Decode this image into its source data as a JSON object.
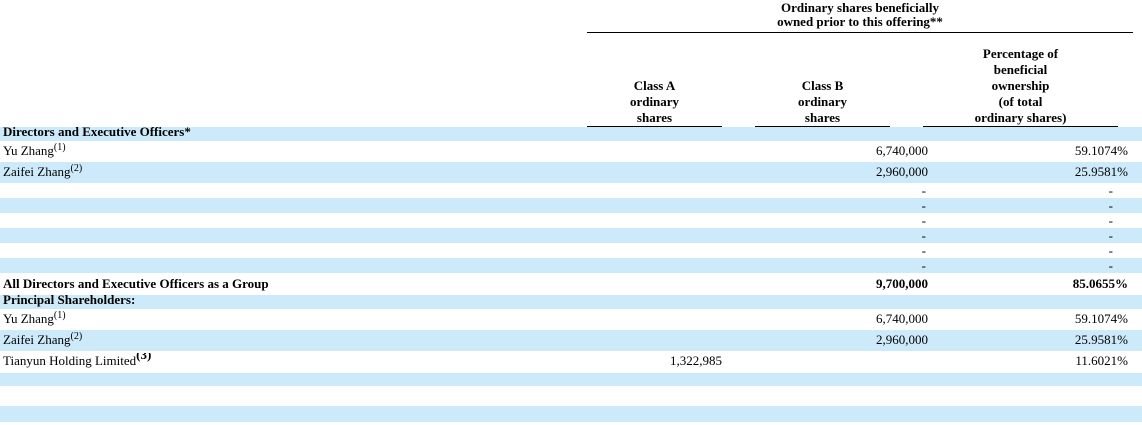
{
  "colors": {
    "row_shade": "#cdeafa",
    "text": "#000000",
    "rule": "#000000"
  },
  "table": {
    "span_header": {
      "line1": "Ordinary shares beneficially",
      "line2": "owned prior to this offering**"
    },
    "column_headers": {
      "class_a": [
        "Class A",
        "ordinary",
        "shares"
      ],
      "class_b": [
        "Class B",
        "ordinary",
        "shares"
      ],
      "percentage": [
        "Percentage of",
        "beneficial",
        "ownership",
        "(of total",
        "ordinary shares)"
      ]
    },
    "rows": [
      {
        "variant": "section",
        "shaded": true,
        "name": "Directors and Executive Officers*",
        "sup": "",
        "class_a": "",
        "class_b": "",
        "pct": ""
      },
      {
        "variant": "holder",
        "shaded": false,
        "name": "Yu Zhang",
        "sup": "(1)",
        "class_a": "",
        "class_b": "6,740,000",
        "pct": "59.1074%"
      },
      {
        "variant": "holder",
        "shaded": true,
        "name": "Zaifei Zhang",
        "sup": "(2)",
        "class_a": "",
        "class_b": "2,960,000",
        "pct": "25.9581%"
      },
      {
        "variant": "dash",
        "shaded": false,
        "name": "",
        "sup": "",
        "class_a": "",
        "class_b": "-",
        "pct": "-"
      },
      {
        "variant": "dash",
        "shaded": true,
        "name": "",
        "sup": "",
        "class_a": "",
        "class_b": "-",
        "pct": "-"
      },
      {
        "variant": "dash",
        "shaded": false,
        "name": "",
        "sup": "",
        "class_a": "",
        "class_b": "-",
        "pct": "-"
      },
      {
        "variant": "dash",
        "shaded": true,
        "name": "",
        "sup": "",
        "class_a": "",
        "class_b": "-",
        "pct": "-"
      },
      {
        "variant": "dash",
        "shaded": false,
        "name": "",
        "sup": "",
        "class_a": "",
        "class_b": "-",
        "pct": "-"
      },
      {
        "variant": "dash",
        "shaded": true,
        "name": "",
        "sup": "",
        "class_a": "",
        "class_b": "-",
        "pct": "-"
      },
      {
        "variant": "total",
        "shaded": false,
        "name": "All Directors and Executive Officers as a Group",
        "sup": "",
        "class_a": "",
        "class_b": "9,700,000",
        "pct": "85.0655%"
      },
      {
        "variant": "section",
        "shaded": true,
        "name": "Principal Shareholders:",
        "sup": "",
        "class_a": "",
        "class_b": "",
        "pct": ""
      },
      {
        "variant": "holder",
        "shaded": false,
        "name": "Yu Zhang",
        "sup": "(1)",
        "class_a": "",
        "class_b": "6,740,000",
        "pct": "59.1074%"
      },
      {
        "variant": "holder",
        "shaded": true,
        "name": "Zaifei Zhang",
        "sup": "(2)",
        "class_a": "",
        "class_b": "2,960,000",
        "pct": "25.9581%"
      },
      {
        "variant": "holder-big-sup",
        "shaded": false,
        "name": "Tianyun Holding Limited",
        "sup": "(3)",
        "class_a": "1,322,985",
        "class_b": "",
        "pct": "11.6021%"
      },
      {
        "variant": "empty1",
        "shaded": true,
        "name": "",
        "sup": "",
        "class_a": "",
        "class_b": "",
        "pct": ""
      },
      {
        "variant": "empty2",
        "shaded": false,
        "name": "",
        "sup": "",
        "class_a": "",
        "class_b": "",
        "pct": ""
      },
      {
        "variant": "empty3",
        "shaded": true,
        "name": "",
        "sup": "",
        "class_a": "",
        "class_b": "",
        "pct": ""
      }
    ]
  }
}
